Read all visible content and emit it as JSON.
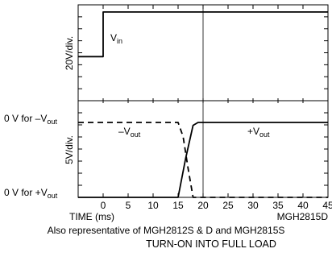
{
  "chart_data": {
    "type": "line",
    "title": "TURN-ON INTO FULL LOAD",
    "part_number": "MGH2815D",
    "note": "Also representative of MGH2812S & D and MGH2815S",
    "xlabel": "TIME (ms)",
    "xlim": [
      -5,
      45
    ],
    "x_ticks": [
      0,
      5,
      10,
      15,
      20,
      25,
      30,
      35,
      40,
      45
    ],
    "grid": true,
    "panels": [
      {
        "name": "top",
        "ylabel": "20V/div.",
        "series": [
          {
            "label_main": "V",
            "label_sub": "in",
            "style": "solid",
            "x": [
              -5,
              0,
              0,
              45
            ],
            "y_frac": [
              0.46,
              0.46,
              0.925,
              0.925
            ]
          }
        ]
      },
      {
        "name": "bottom",
        "ylabel": "5V/div.",
        "ref_labels": [
          {
            "text": "0 V for –V",
            "sub": "out"
          },
          {
            "text": "0 V for +V",
            "sub": "out"
          }
        ],
        "series": [
          {
            "label_main": "–V",
            "label_sub": "out",
            "style": "dashed",
            "x": [
              -5,
              15,
              16,
              17,
              18,
              45
            ],
            "y_frac": [
              0.775,
              0.775,
              0.63,
              0.3,
              0.0,
              0.0
            ]
          },
          {
            "label_main": "+V",
            "label_sub": "out",
            "style": "solid",
            "x": [
              -5,
              15,
              16.5,
              18,
              19,
              45
            ],
            "y_frac": [
              0.0,
              0.0,
              0.4,
              0.745,
              0.775,
              0.775
            ]
          }
        ]
      }
    ]
  }
}
